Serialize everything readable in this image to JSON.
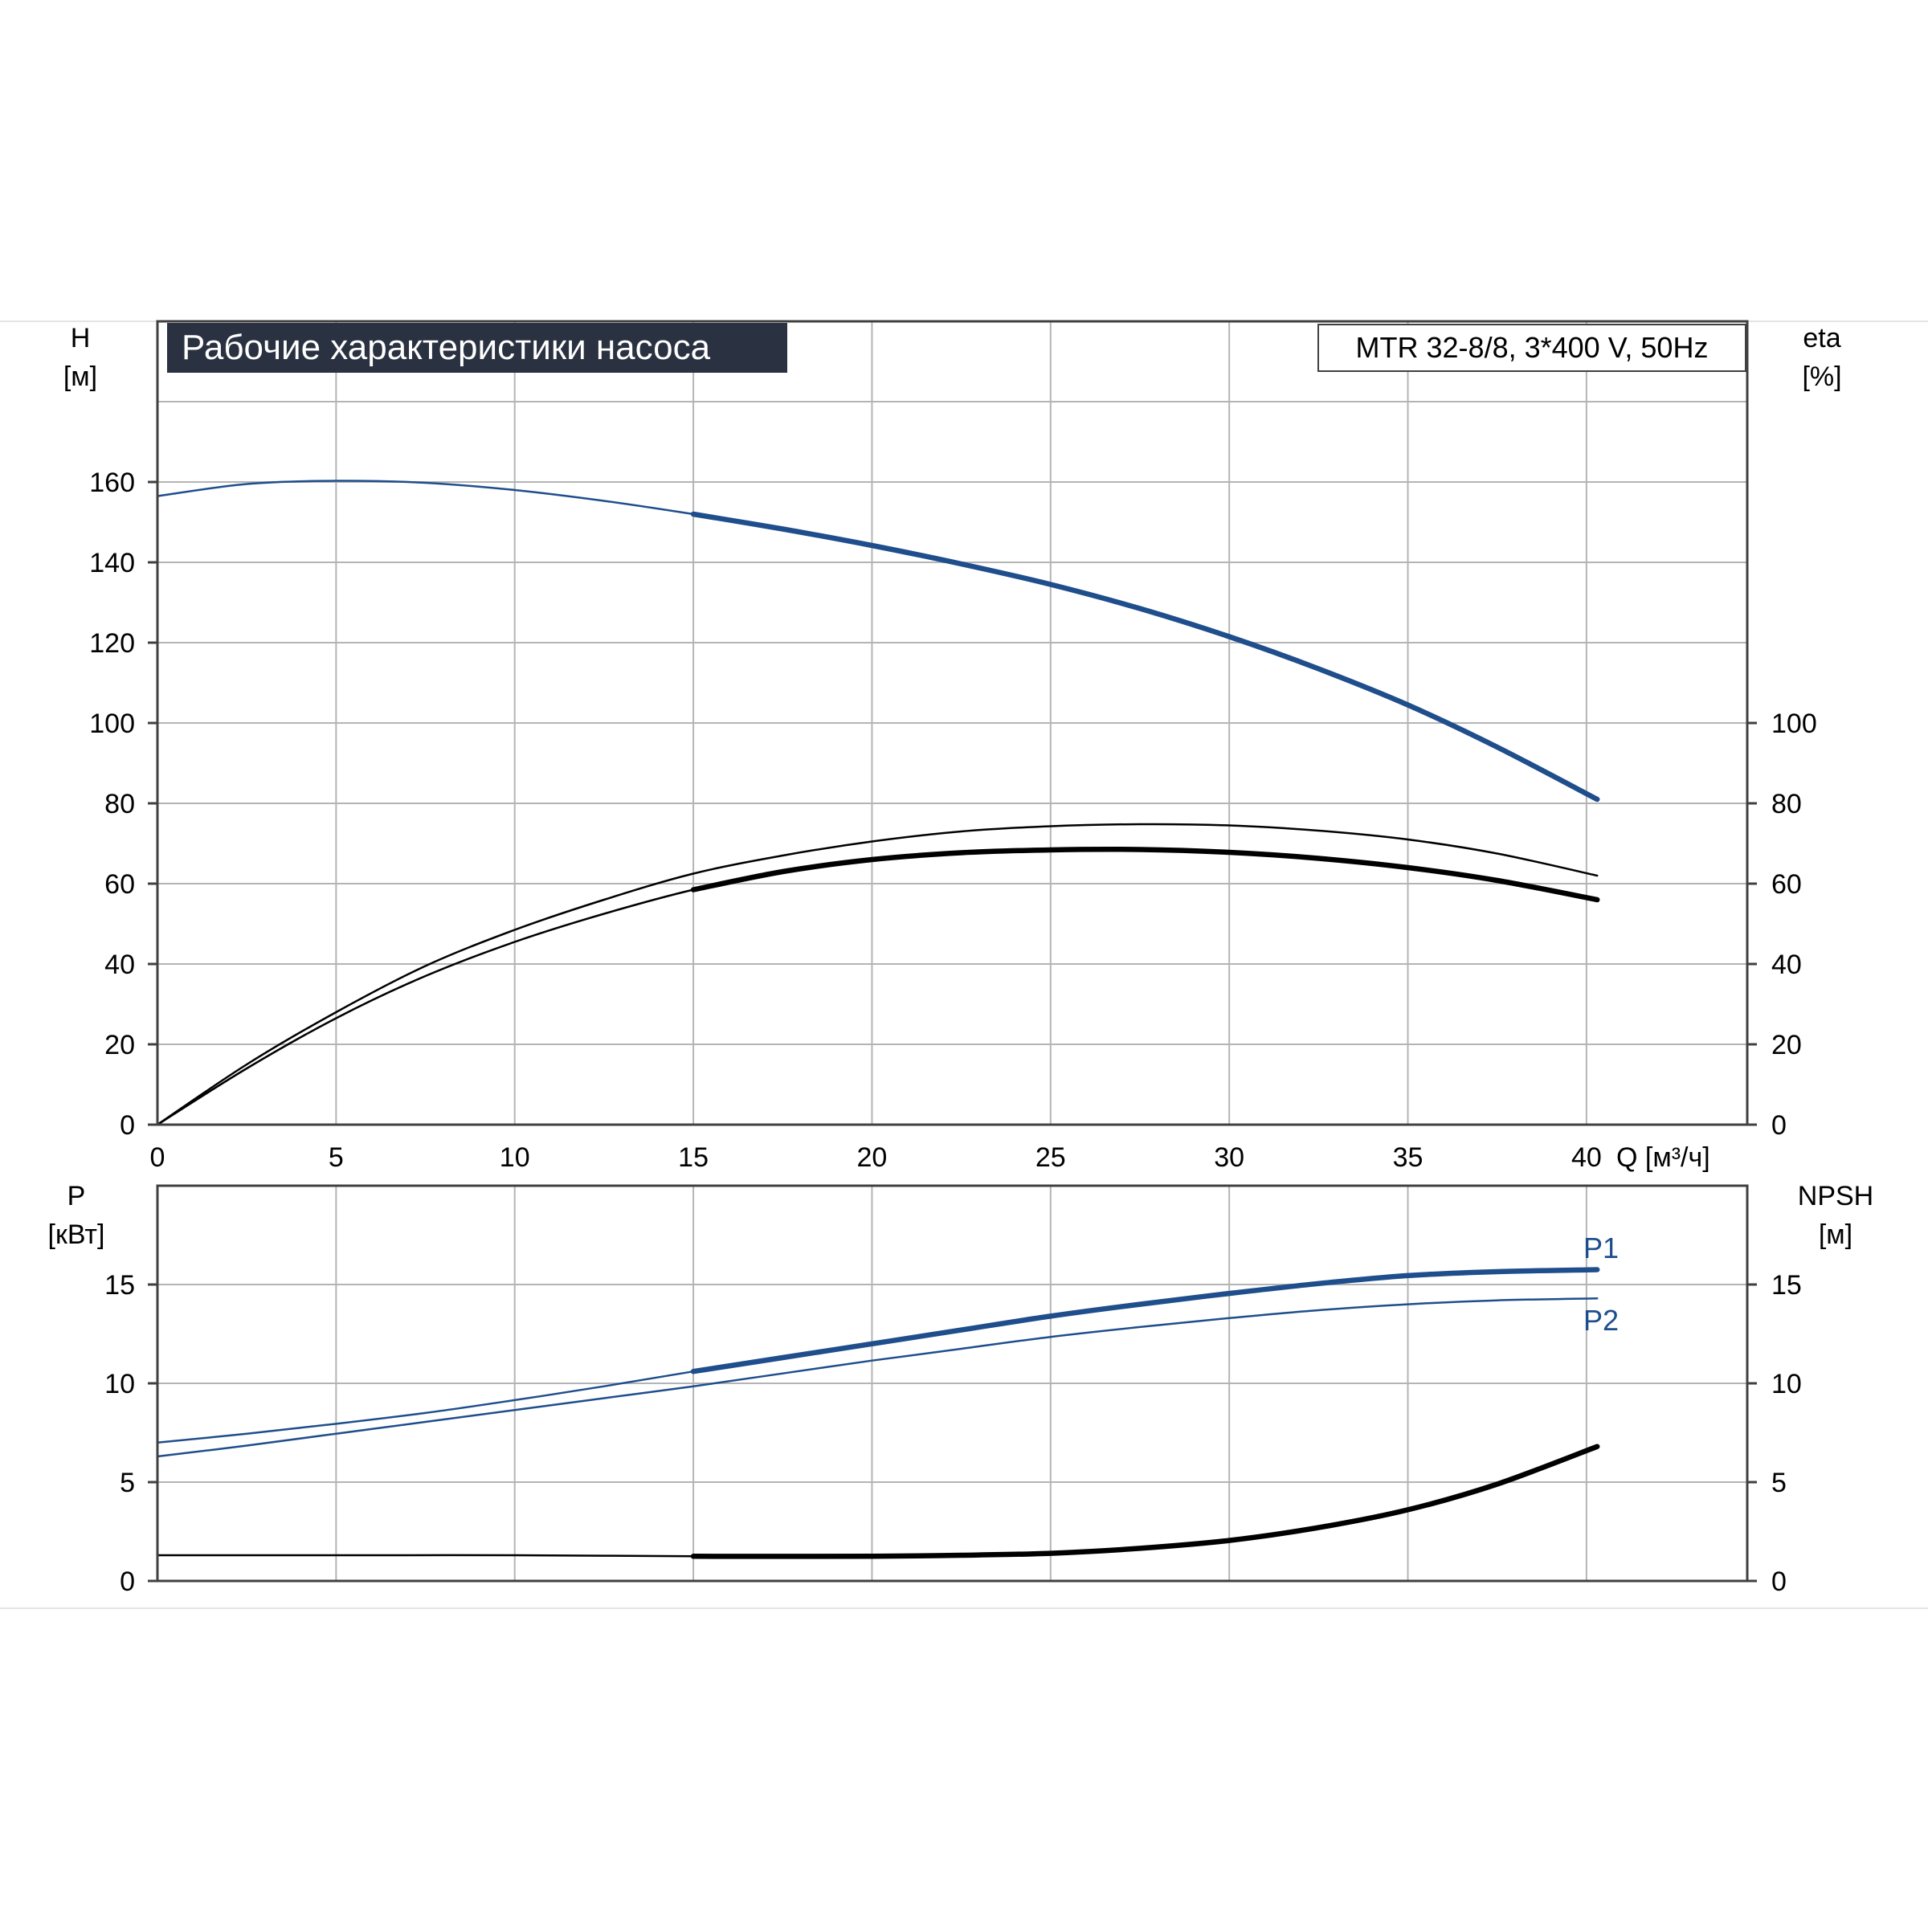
{
  "colors": {
    "grid": "#b4b4b4",
    "axis": "#404040",
    "blue": "#1f4e8c",
    "black": "#000000",
    "title_bg": "#2a3140",
    "title_fg": "#ffffff"
  },
  "title_badge": {
    "text": "Рабочие характеристики насоса"
  },
  "model_badge": {
    "text": "MTR 32-8/8, 3*400 V, 50Hz"
  },
  "top_axes": {
    "left_label_top": "H",
    "left_label_bottom": "[м]",
    "right_label_top": "eta",
    "right_label_bottom": "[%]",
    "x_label": "Q [м³/ч]",
    "left_ticks": [
      "0",
      "20",
      "40",
      "60",
      "80",
      "100",
      "120",
      "140",
      "160"
    ],
    "right_ticks": [
      "0",
      "20",
      "40",
      "60",
      "80",
      "100"
    ],
    "x_ticks": [
      "0",
      "5",
      "10",
      "15",
      "20",
      "25",
      "30",
      "35",
      "40"
    ]
  },
  "bottom_axes": {
    "left_label_top": "P",
    "left_label_bottom": "[кВт]",
    "right_label_top": "NPSH",
    "right_label_bottom": "[м]",
    "left_ticks": [
      "0",
      "5",
      "10",
      "15"
    ],
    "right_ticks": [
      "0",
      "5",
      "10",
      "15"
    ]
  },
  "chart_data": [
    {
      "type": "line",
      "panel": "top",
      "xlabel": "Q [м³/ч]",
      "ylabel": "H [м]",
      "y2label": "eta [%]",
      "xlim": [
        0,
        44.5
      ],
      "ylim": [
        0,
        200
      ],
      "y2lim": [
        0,
        200
      ],
      "grid": true,
      "series": [
        {
          "axis": "left",
          "color": "blue",
          "x": [
            0,
            2.5,
            5,
            7.5,
            10,
            12.5,
            15,
            17.5,
            20,
            22.5,
            25,
            27.5,
            30,
            32.5,
            35,
            37.5,
            40.3
          ],
          "y": [
            156.5,
            159.5,
            160.3,
            159.8,
            158,
            155.3,
            152,
            148.3,
            144.2,
            139.6,
            134.5,
            128.5,
            121.5,
            113.5,
            104.5,
            94,
            81
          ],
          "emphasis_from_x": 15
        },
        {
          "axis": "right",
          "color": "black",
          "x": [
            0,
            2.5,
            5,
            7.5,
            10,
            12.5,
            15,
            17.5,
            20,
            22.5,
            25,
            27.5,
            30,
            32.5,
            35,
            37.5,
            40.3
          ],
          "y": [
            0,
            15,
            28,
            39.5,
            48.5,
            56,
            62.5,
            67,
            70.5,
            73,
            74.3,
            74.8,
            74.5,
            73.2,
            71,
            67.5,
            62
          ],
          "emphasis_from_x": 100
        },
        {
          "axis": "right",
          "color": "black",
          "x": [
            0,
            2.5,
            5,
            7.5,
            10,
            12.5,
            15,
            17.5,
            20,
            22.5,
            25,
            27.5,
            30,
            32.5,
            35,
            37.5,
            40.3
          ],
          "y": [
            0,
            14,
            26.5,
            37,
            45.5,
            52.5,
            58.5,
            63,
            66,
            67.7,
            68.4,
            68.5,
            67.8,
            66.3,
            64,
            60.8,
            56
          ],
          "emphasis_from_x": 15
        }
      ]
    },
    {
      "type": "line",
      "panel": "bottom",
      "xlabel": "Q [м³/ч]",
      "ylabel": "P [кВт]",
      "y2label": "NPSH [м]",
      "xlim": [
        0,
        44.5
      ],
      "ylim": [
        0,
        20
      ],
      "y2lim": [
        0,
        20
      ],
      "grid": true,
      "series": [
        {
          "name": "P1",
          "axis": "left",
          "color": "blue",
          "x": [
            0,
            2.5,
            5,
            7.5,
            10,
            12.5,
            15,
            17.5,
            20,
            22.5,
            25,
            27.5,
            30,
            32.5,
            35,
            37.5,
            40.3
          ],
          "y": [
            7,
            7.45,
            7.95,
            8.5,
            9.15,
            9.85,
            10.6,
            11.3,
            12,
            12.7,
            13.4,
            14,
            14.55,
            15.05,
            15.45,
            15.65,
            15.75
          ],
          "emphasis_from_x": 15
        },
        {
          "name": "P2",
          "axis": "left",
          "color": "blue",
          "x": [
            0,
            2.5,
            5,
            7.5,
            10,
            12.5,
            15,
            17.5,
            20,
            22.5,
            25,
            27.5,
            30,
            32.5,
            35,
            37.5,
            40.3
          ],
          "y": [
            6.3,
            6.85,
            7.45,
            8.05,
            8.65,
            9.25,
            9.85,
            10.5,
            11.15,
            11.75,
            12.35,
            12.85,
            13.3,
            13.7,
            14,
            14.2,
            14.3
          ],
          "emphasis_from_x": 100
        },
        {
          "axis": "right",
          "color": "black",
          "x": [
            0,
            5,
            10,
            15,
            20,
            22.5,
            25,
            27.5,
            30,
            32.5,
            35,
            37.5,
            40.3
          ],
          "y": [
            1.3,
            1.3,
            1.3,
            1.25,
            1.25,
            1.3,
            1.4,
            1.65,
            2.05,
            2.7,
            3.6,
            4.9,
            6.8
          ],
          "emphasis_from_x": 15
        }
      ]
    }
  ]
}
